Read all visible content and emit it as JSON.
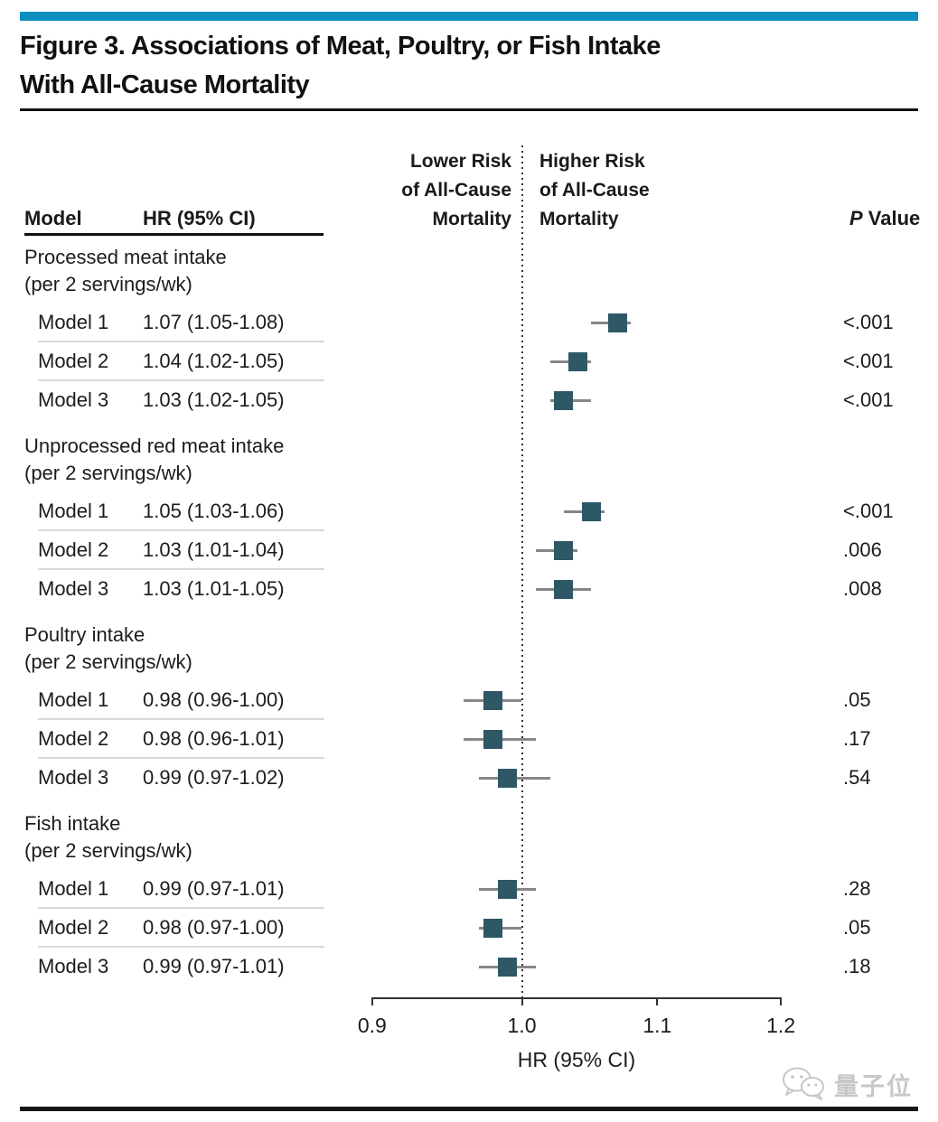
{
  "figure": {
    "title_line1": "Figure 3. Associations of Meat, Poultry, or Fish Intake",
    "title_line2": "With All-Cause Mortality"
  },
  "columns": {
    "model_header": "Model",
    "hr_header": "HR (95% CI)",
    "p_header_italic": "P",
    "p_header_rest": " Value",
    "lower_risk_lines": [
      "Lower Risk",
      "of All-Cause",
      "Mortality"
    ],
    "higher_risk_lines": [
      "Higher Risk",
      "of All-Cause",
      "Mortality"
    ]
  },
  "colors": {
    "accent_bar": "#0d90c0",
    "marker": "#2e5866",
    "whisker": "#878787"
  },
  "watermark": {
    "text": "量子位",
    "logo": "wechat-chat-bubbles-icon"
  },
  "chart_data": {
    "type": "forest",
    "title": "Figure 3. Associations of Meat, Poultry, or Fish Intake With All-Cause Mortality",
    "axis": {
      "scale": "log",
      "min": 0.9,
      "max": 1.2,
      "reference": 1.0,
      "ticks": [
        0.9,
        1.0,
        1.1,
        1.2
      ],
      "tick_labels": [
        "0.9",
        "1.0",
        "1.1",
        "1.2"
      ],
      "xlabel": "HR (95% CI)"
    },
    "groups": [
      {
        "label": "Processed meat intake",
        "sublabel": "(per 2 servings/wk)",
        "rows": [
          {
            "model": "Model 1",
            "hr_text": "1.07 (1.05-1.08)",
            "hr": 1.07,
            "lo": 1.05,
            "hi": 1.08,
            "p": "<.001"
          },
          {
            "model": "Model 2",
            "hr_text": "1.04 (1.02-1.05)",
            "hr": 1.04,
            "lo": 1.02,
            "hi": 1.05,
            "p": "<.001"
          },
          {
            "model": "Model 3",
            "hr_text": "1.03 (1.02-1.05)",
            "hr": 1.03,
            "lo": 1.02,
            "hi": 1.05,
            "p": "<.001"
          }
        ]
      },
      {
        "label": "Unprocessed red meat intake",
        "sublabel": "(per 2 servings/wk)",
        "rows": [
          {
            "model": "Model 1",
            "hr_text": "1.05 (1.03-1.06)",
            "hr": 1.05,
            "lo": 1.03,
            "hi": 1.06,
            "p": "<.001"
          },
          {
            "model": "Model 2",
            "hr_text": "1.03 (1.01-1.04)",
            "hr": 1.03,
            "lo": 1.01,
            "hi": 1.04,
            "p": ".006"
          },
          {
            "model": "Model 3",
            "hr_text": "1.03 (1.01-1.05)",
            "hr": 1.03,
            "lo": 1.01,
            "hi": 1.05,
            "p": ".008"
          }
        ]
      },
      {
        "label": "Poultry intake",
        "sublabel": "(per 2 servings/wk)",
        "rows": [
          {
            "model": "Model 1",
            "hr_text": "0.98 (0.96-1.00)",
            "hr": 0.98,
            "lo": 0.96,
            "hi": 1.0,
            "p": ".05"
          },
          {
            "model": "Model 2",
            "hr_text": "0.98 (0.96-1.01)",
            "hr": 0.98,
            "lo": 0.96,
            "hi": 1.01,
            "p": ".17"
          },
          {
            "model": "Model 3",
            "hr_text": "0.99 (0.97-1.02)",
            "hr": 0.99,
            "lo": 0.97,
            "hi": 1.02,
            "p": ".54"
          }
        ]
      },
      {
        "label": "Fish intake",
        "sublabel": "(per 2 servings/wk)",
        "rows": [
          {
            "model": "Model 1",
            "hr_text": "0.99 (0.97-1.01)",
            "hr": 0.99,
            "lo": 0.97,
            "hi": 1.01,
            "p": ".28"
          },
          {
            "model": "Model 2",
            "hr_text": "0.98 (0.97-1.00)",
            "hr": 0.98,
            "lo": 0.97,
            "hi": 1.0,
            "p": ".05"
          },
          {
            "model": "Model 3",
            "hr_text": "0.99 (0.97-1.01)",
            "hr": 0.99,
            "lo": 0.97,
            "hi": 1.01,
            "p": ".18"
          }
        ]
      }
    ]
  }
}
